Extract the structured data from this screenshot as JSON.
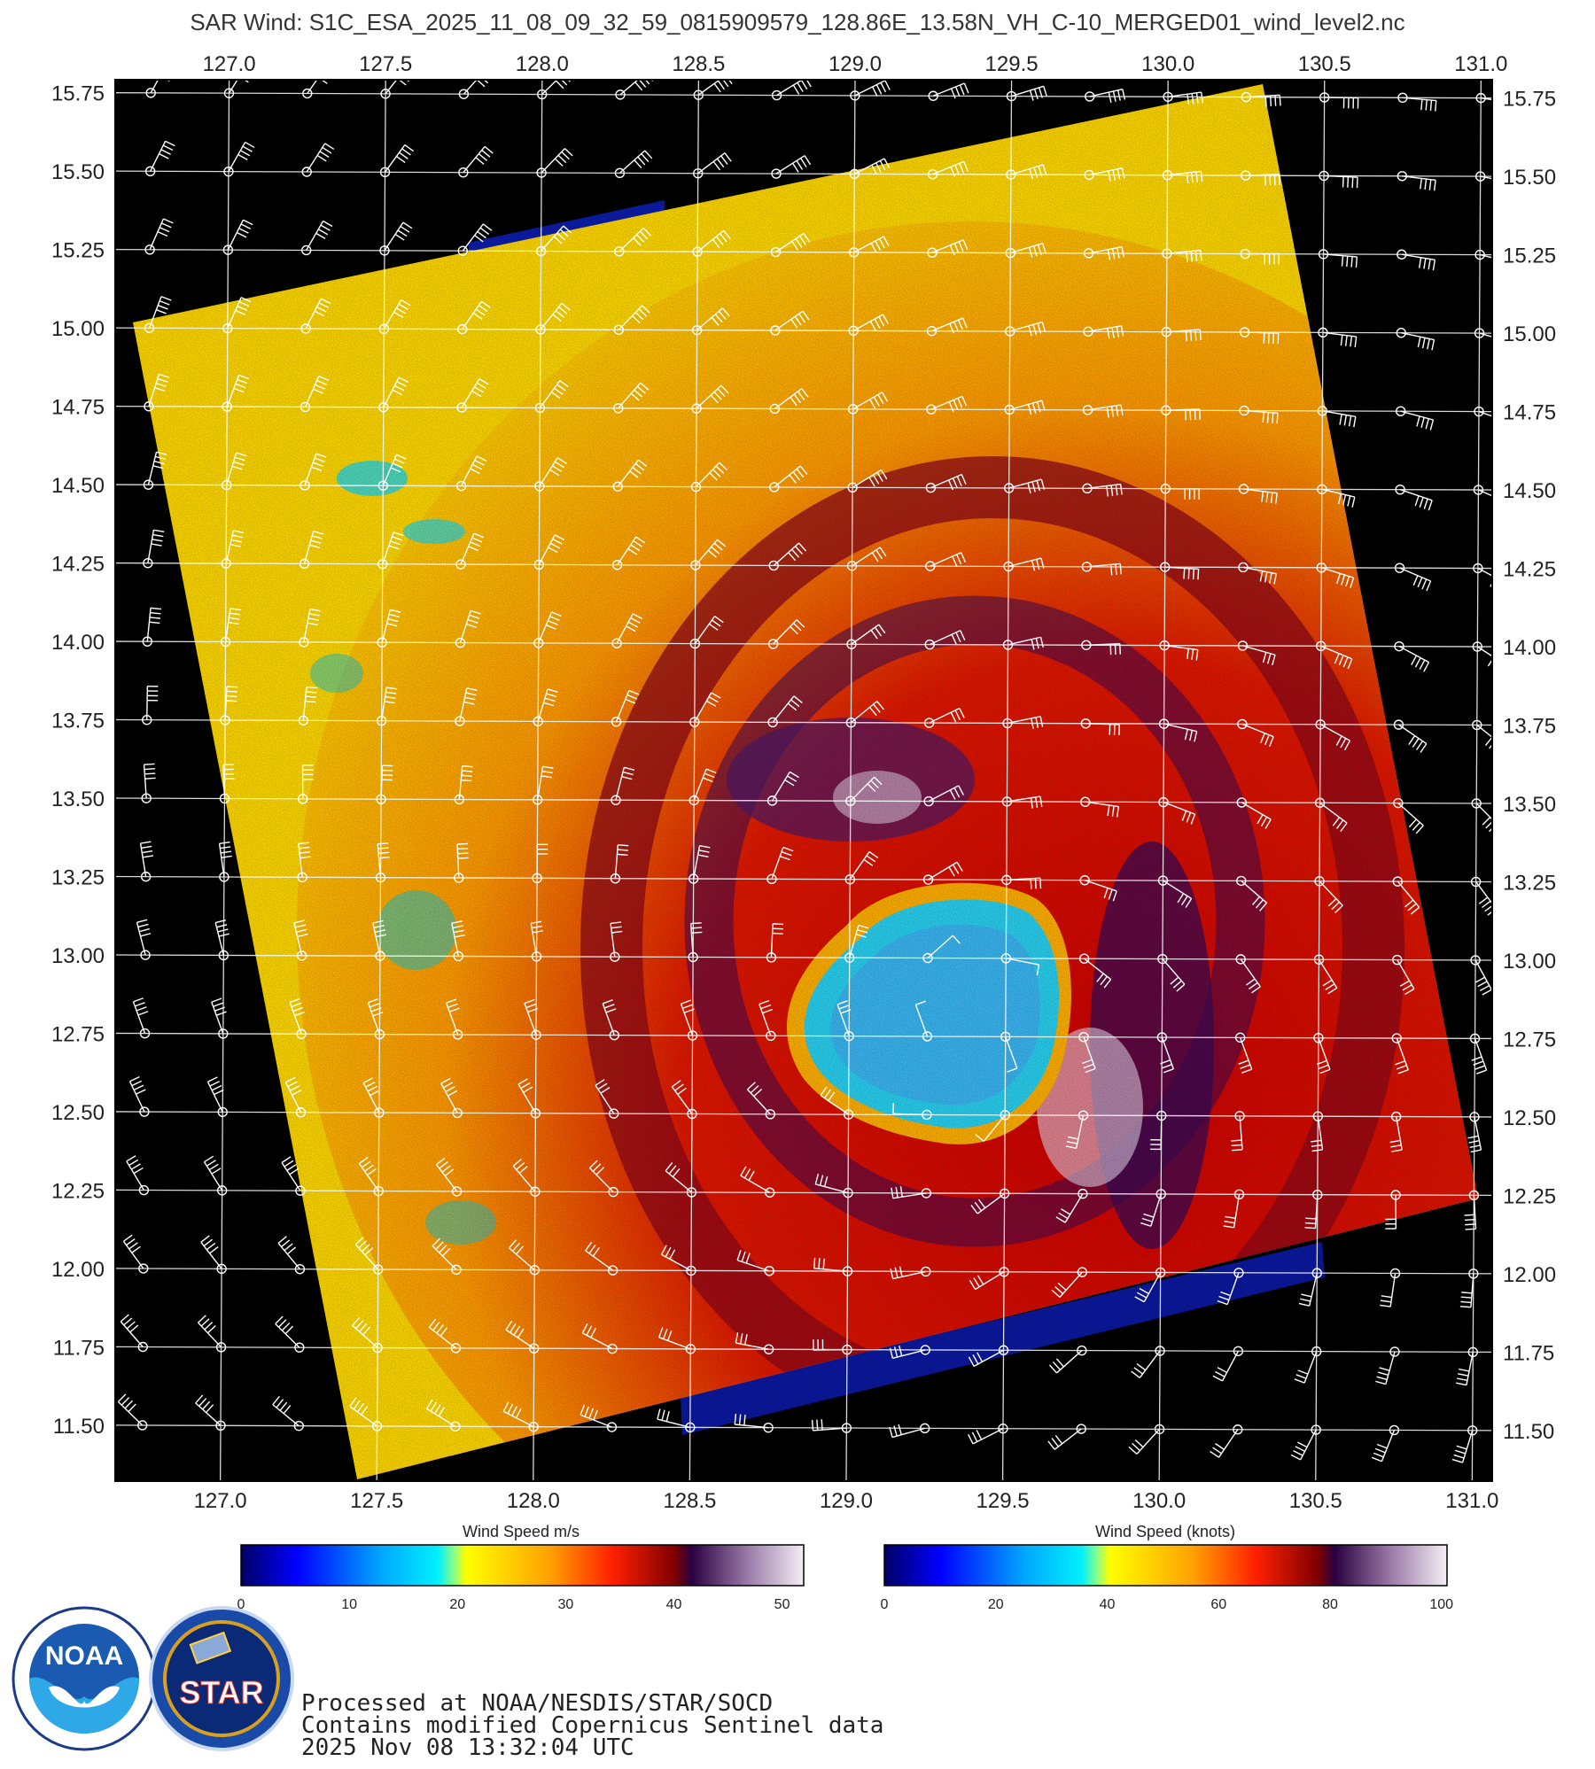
{
  "title": "SAR Wind: S1C_ESA_2025_11_08_09_32_59_0815909579_128.86E_13.58N_VH_C-10_MERGED01_wind_level2.nc",
  "map": {
    "lon_ticks": [
      "127.0",
      "127.5",
      "128.0",
      "128.5",
      "129.0",
      "129.5",
      "130.0",
      "130.5",
      "131.0"
    ],
    "lat_ticks": [
      "15.75",
      "15.50",
      "15.25",
      "15.00",
      "14.75",
      "14.50",
      "14.25",
      "14.00",
      "13.75",
      "13.50",
      "13.25",
      "13.00",
      "12.75",
      "12.50",
      "12.25",
      "12.00",
      "11.75",
      "11.50"
    ],
    "lon_range": [
      126.65,
      131.05
    ],
    "lat_range": [
      11.33,
      15.8
    ],
    "storm_center": {
      "lon": 129.35,
      "lat": 12.75
    },
    "colors": {
      "low": "#00f0ff",
      "mid": "#ffe000",
      "high": "#d40000",
      "peak": "#3a0a55",
      "extreme": "#f2e8f0"
    }
  },
  "colorbar_ms": {
    "title": "Wind Speed m/s",
    "ticks": [
      "0",
      "10",
      "20",
      "30",
      "40",
      "50"
    ],
    "range": [
      0,
      52
    ]
  },
  "colorbar_kt": {
    "title": "Wind Speed (knots)",
    "ticks": [
      "0",
      "20",
      "40",
      "60",
      "80",
      "100"
    ],
    "range": [
      0,
      101
    ]
  },
  "footer": {
    "line1": "Processed at NOAA/NESDIS/STAR/SOCD",
    "line2": "Contains modified Copernicus Sentinel data",
    "line3": " 2025 Nov 08 13:32:04 UTC"
  },
  "logos": {
    "noaa_text": "NOAA",
    "star_text": "STAR"
  }
}
